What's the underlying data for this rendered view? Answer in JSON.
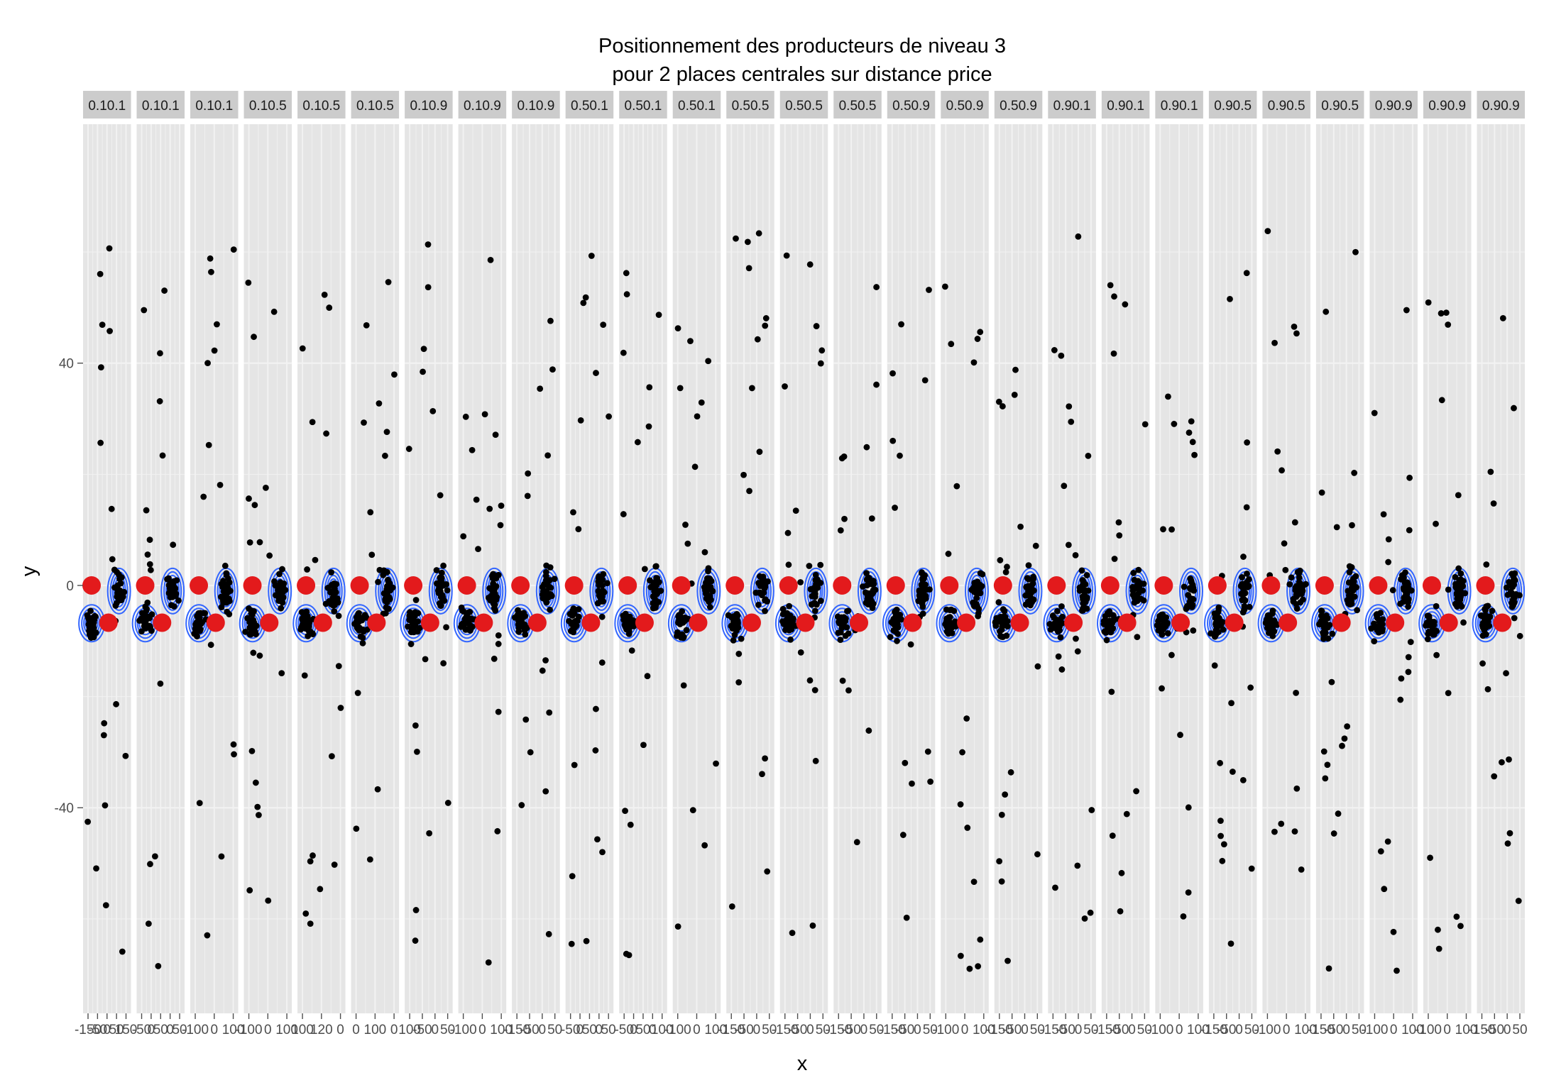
{
  "chart_data": {
    "type": "scatter",
    "title_lines": [
      "Positionnement des producteurs de niveau 3",
      "pour 2 places centrales sur distance price"
    ],
    "xlabel": "x",
    "ylabel": "y",
    "ylim": [
      -77,
      83
    ],
    "y_ticks": [
      {
        "value": 40,
        "label": "40"
      },
      {
        "value": 0,
        "label": "0"
      },
      {
        "value": -40,
        "label": "-40"
      }
    ],
    "grid": true,
    "panels": [
      {
        "label": "0.10.1",
        "xticks": [
          "-150",
          "-50",
          "0",
          "50",
          "150"
        ]
      },
      {
        "label": "0.10.1",
        "xticks": [
          "-50",
          "0",
          "50",
          "0",
          "50"
        ]
      },
      {
        "label": "0.10.1",
        "xticks": [
          "-100",
          "0",
          "100"
        ]
      },
      {
        "label": "0.10.5",
        "xticks": [
          "-100",
          "0",
          "100"
        ]
      },
      {
        "label": "0.10.5",
        "xticks": [
          "100",
          "120",
          "0"
        ]
      },
      {
        "label": "0.10.5",
        "xticks": [
          "0",
          "100",
          "0"
        ]
      },
      {
        "label": "0.10.9",
        "xticks": [
          "100",
          "-50",
          "0",
          "50"
        ]
      },
      {
        "label": "0.10.9",
        "xticks": [
          "-100",
          "0",
          "100"
        ]
      },
      {
        "label": "0.10.9",
        "xticks": [
          "-150",
          "-50",
          "0",
          "50"
        ]
      },
      {
        "label": "0.50.1",
        "xticks": [
          "-50",
          "0",
          "50",
          "0",
          "50"
        ]
      },
      {
        "label": "0.50.1",
        "xticks": [
          "-50",
          "0",
          "50",
          "0",
          "100"
        ]
      },
      {
        "label": "0.50.1",
        "xticks": [
          "-100",
          "0",
          "100"
        ]
      },
      {
        "label": "0.50.5",
        "xticks": [
          "-150",
          "-50",
          "0",
          "50"
        ]
      },
      {
        "label": "0.50.5",
        "xticks": [
          "-150",
          "-50",
          "0",
          "50"
        ]
      },
      {
        "label": "0.50.5",
        "xticks": [
          "-150",
          "-50",
          "0",
          "50"
        ]
      },
      {
        "label": "0.50.9",
        "xticks": [
          "-150",
          "-50",
          "0",
          "50"
        ]
      },
      {
        "label": "0.50.9",
        "xticks": [
          "-100",
          "0",
          "100"
        ]
      },
      {
        "label": "0.50.9",
        "xticks": [
          "-150",
          "-50",
          "0",
          "50"
        ]
      },
      {
        "label": "0.90.1",
        "xticks": [
          "-150",
          "-50",
          "0",
          "50"
        ]
      },
      {
        "label": "0.90.1",
        "xticks": [
          "-150",
          "-50",
          "0",
          "50"
        ]
      },
      {
        "label": "0.90.1",
        "xticks": [
          "-100",
          "0",
          "100"
        ]
      },
      {
        "label": "0.90.5",
        "xticks": [
          "-150",
          "-50",
          "0",
          "50"
        ]
      },
      {
        "label": "0.90.5",
        "xticks": [
          "-100",
          "0",
          "100"
        ]
      },
      {
        "label": "0.90.5",
        "xticks": [
          "-150",
          "-50",
          "0",
          "50"
        ]
      },
      {
        "label": "0.90.9",
        "xticks": [
          "-100",
          "0",
          "100"
        ]
      },
      {
        "label": "0.90.9",
        "xticks": [
          "-100",
          "0",
          "100"
        ]
      },
      {
        "label": "0.90.9",
        "xticks": [
          "-150",
          "-50",
          "0",
          "50"
        ]
      }
    ],
    "central_places_y": [
      0,
      -6.7
    ],
    "cluster_center_y": [
      -1,
      -6.8
    ],
    "colors": {
      "background": "#ffffff",
      "panel": "#e5e5e5",
      "strip": "#cccccc",
      "grid": "#f2f2f2",
      "points": "#000000",
      "central_places": "#e31a1c",
      "density_contours": "#3366ff",
      "axis_text": "#4d4d4d"
    }
  }
}
